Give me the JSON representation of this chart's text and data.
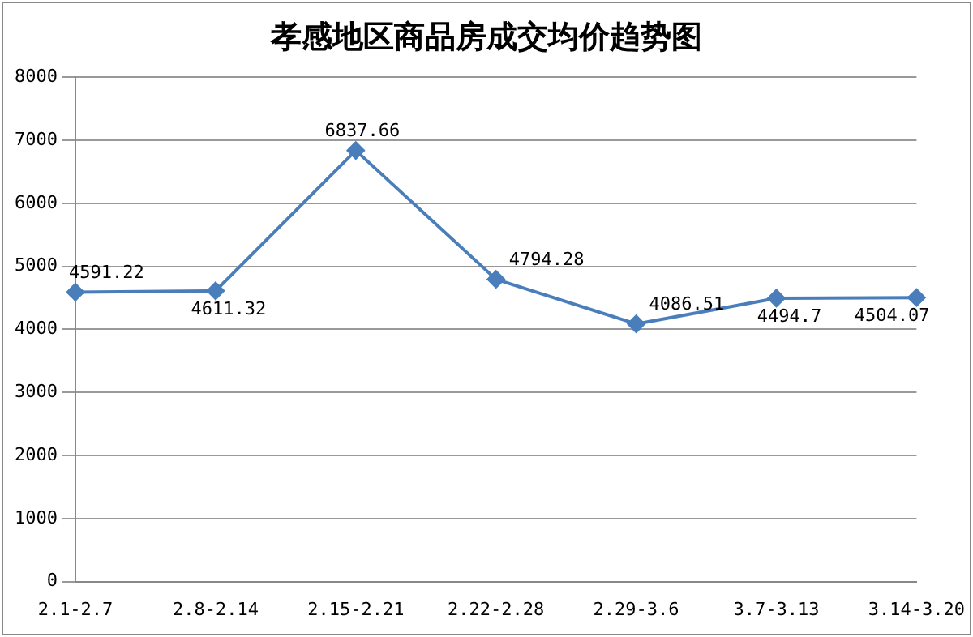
{
  "chart_data": {
    "type": "line",
    "title": "孝感地区商品房成交均价趋势图",
    "categories": [
      "2.1-2.7",
      "2.8-2.14",
      "2.15-2.21",
      "2.22-2.28",
      "2.29-3.6",
      "3.7-3.13",
      "3.14-3.20"
    ],
    "series": [
      {
        "color": "#4a7ebb",
        "values": [
          4591.22,
          4611.32,
          6837.66,
          4794.28,
          4086.51,
          4494.7,
          4504.07
        ]
      }
    ],
    "ylim": [
      0,
      8000
    ],
    "yticks": [
      0,
      1000,
      2000,
      3000,
      4000,
      5000,
      6000,
      7000,
      8000
    ],
    "grid": "y",
    "legend": false,
    "marker": "diamond",
    "line_style": "solid",
    "data_labels": true
  }
}
